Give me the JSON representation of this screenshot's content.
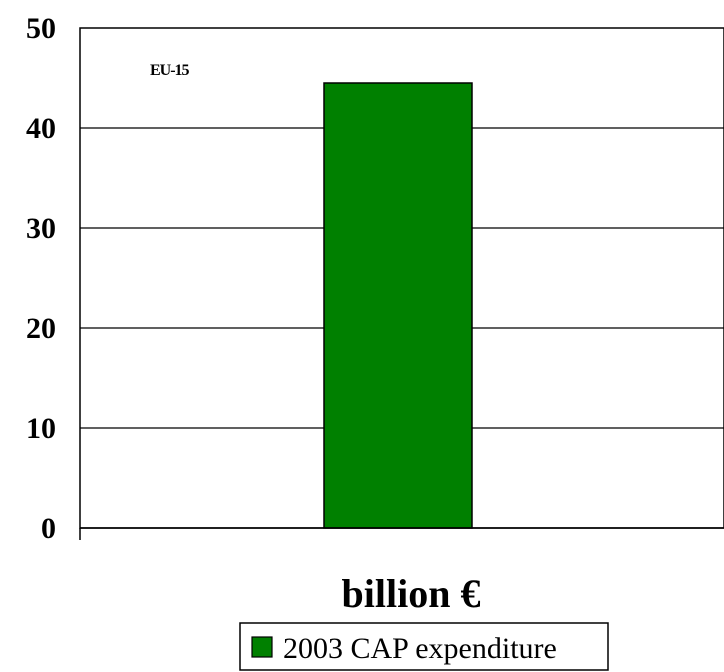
{
  "chart_data": {
    "type": "bar",
    "categories": [
      ""
    ],
    "series": [
      {
        "name": "2003 CAP expenditure",
        "values": [
          44.5
        ],
        "color": "#008000"
      }
    ],
    "xlabel": "billion €",
    "ylabel": "",
    "ylim": [
      0,
      50
    ],
    "yticks": [
      "0",
      "10",
      "20",
      "30",
      "40",
      "50"
    ],
    "annotation": "EU-15",
    "grid": true,
    "legend": "bottom-center"
  }
}
